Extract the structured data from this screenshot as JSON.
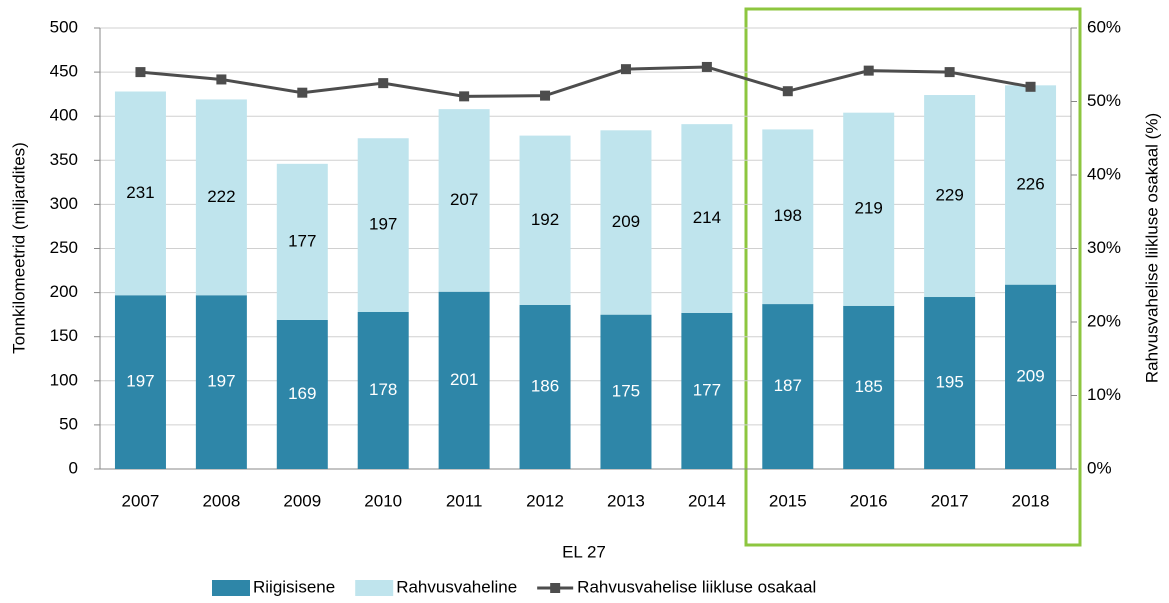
{
  "chart_data": {
    "type": "bar",
    "stacked": true,
    "x_label": "EL 27",
    "y_label": "Tonnkilomeetrid (miljardites)",
    "y2_label": "Rahvusvahelise liikluse osakaal (%)",
    "categories": [
      "2007",
      "2008",
      "2009",
      "2010",
      "2011",
      "2012",
      "2013",
      "2014",
      "2015",
      "2016",
      "2017",
      "2018"
    ],
    "series": [
      {
        "name": "Riigisisene",
        "type": "bar",
        "color": "#2e86a8",
        "label_color": "#ffffff",
        "values": [
          197,
          197,
          169,
          178,
          201,
          186,
          175,
          177,
          187,
          185,
          195,
          209
        ]
      },
      {
        "name": "Rahvusvaheline",
        "type": "bar",
        "color": "#bfe4ed",
        "label_color": "#000000",
        "values": [
          231,
          222,
          177,
          197,
          207,
          192,
          209,
          214,
          198,
          219,
          229,
          226
        ]
      },
      {
        "name": "Rahvusvahelise liikluse osakaal",
        "type": "line",
        "axis": "y2",
        "color": "#4d4d4d",
        "values": [
          54.0,
          53.0,
          51.2,
          52.5,
          50.7,
          50.8,
          54.4,
          54.7,
          51.4,
          54.2,
          54.0,
          52.0
        ]
      }
    ],
    "ylim": [
      0,
      500
    ],
    "yticks": [
      0,
      50,
      100,
      150,
      200,
      250,
      300,
      350,
      400,
      450,
      500
    ],
    "y2lim": [
      0,
      60
    ],
    "y2ticks": [
      {
        "value": 0,
        "label": "0%"
      },
      {
        "value": 10,
        "label": "10%"
      },
      {
        "value": 20,
        "label": "20%"
      },
      {
        "value": 30,
        "label": "30%"
      },
      {
        "value": 40,
        "label": "40%"
      },
      {
        "value": 50,
        "label": "50%"
      },
      {
        "value": 60,
        "label": "60%"
      }
    ],
    "grid": true,
    "legend": "bottom"
  }
}
